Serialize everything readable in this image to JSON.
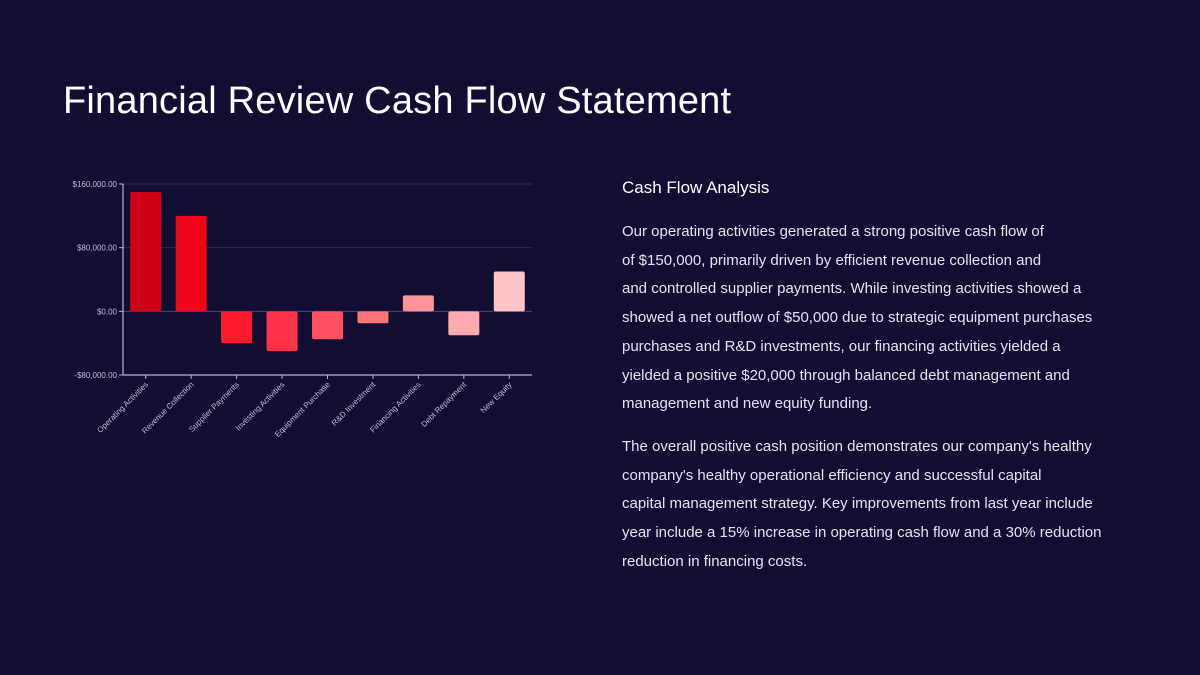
{
  "slide": {
    "title": "Financial Review Cash Flow Statement"
  },
  "panel": {
    "heading": "Cash Flow Analysis",
    "paragraphs": [
      {
        "lines": [
          "Our operating activities generated a strong positive cash flow of",
          "of $150,000, primarily driven by efficient revenue collection and",
          "and controlled supplier payments. While investing activities showed a",
          "showed a net outflow of $50,000 due to strategic equipment purchases",
          "purchases and R&D investments, our financing activities yielded a",
          "yielded a positive $20,000 through balanced debt management and",
          "management and new equity funding."
        ]
      },
      {
        "lines": [
          "The overall positive cash position demonstrates our company's healthy",
          "company's healthy operational efficiency and successful capital",
          "capital management strategy. Key improvements from last year include",
          "year include a 15% increase in operating cash flow and a 30% reduction",
          "reduction in financing costs."
        ]
      }
    ]
  },
  "chart_data": {
    "type": "bar",
    "title": "",
    "xlabel": "",
    "ylabel": "",
    "categories": [
      "Operating Activities",
      "Revenue Collection",
      "Supplier Payments",
      "Investing Activities",
      "Equipment Purchase",
      "R&D Investment",
      "Financing Activities",
      "Debt Repayment",
      "New Equity"
    ],
    "values": [
      150000,
      120000,
      -40000,
      -50000,
      -35000,
      -15000,
      20000,
      -30000,
      50000
    ],
    "colors": [
      "#d10016",
      "#ef0518",
      "#ff1a2e",
      "#ff3448",
      "#ff5060",
      "#ff7478",
      "#ff9499",
      "#ffaab0",
      "#ffc4c8"
    ],
    "ylim": [
      -80000,
      160000
    ],
    "yticks": [
      "$160,000.00",
      "$80,000.00",
      "$0.00",
      "-$80,000.00"
    ],
    "ytick_values": [
      160000,
      80000,
      0,
      -80000
    ],
    "grid": true,
    "legend": "none"
  },
  "colors": {
    "background": "#110d33",
    "axis": "#b7b3dd",
    "grid": "#2e2a55"
  }
}
